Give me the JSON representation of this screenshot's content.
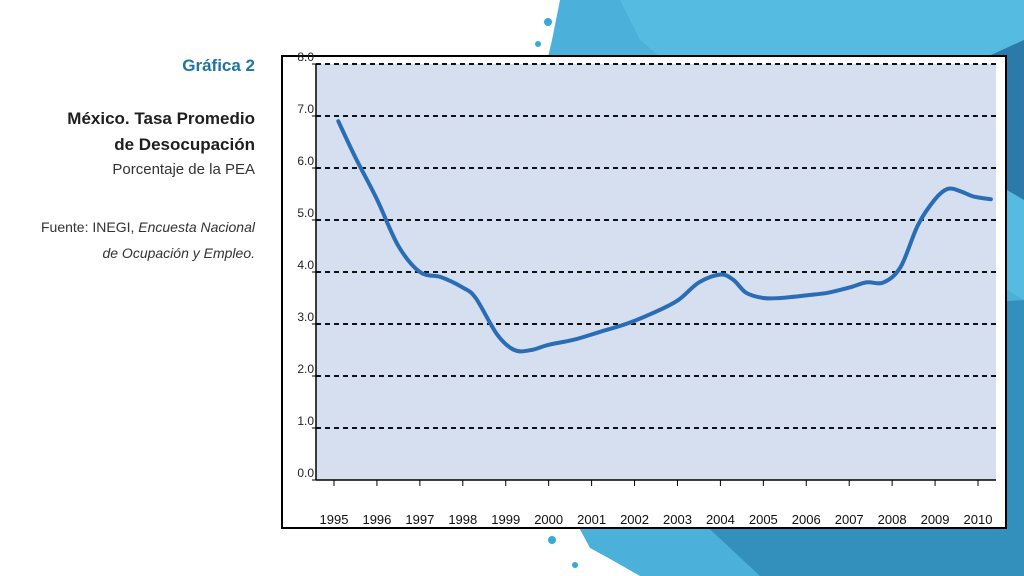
{
  "sidebar": {
    "figure_label": "Gráfica 2",
    "title_line1": "México. Tasa Promedio",
    "title_line2": "de Desocupación",
    "subtitle": "Porcentaje de la PEA",
    "source_prefix": "Fuente: INEGI, ",
    "source_italic": "Encuesta Nacional de Ocupación y Empleo."
  },
  "colors": {
    "plot_background": "#d6dff0",
    "line": "#2a6db5",
    "accent_blue": "#1f74a6",
    "splash_blue": "#38a9d6"
  },
  "chart_data": {
    "type": "line",
    "title": "México. Tasa Promedio de Desocupación",
    "subtitle": "Porcentaje de la PEA",
    "xlabel": "",
    "ylabel": "",
    "ylim": [
      0,
      8
    ],
    "xlim": [
      1995,
      2010
    ],
    "grid": true,
    "legend": "none",
    "y_ticks": [
      "0.0",
      "1.0",
      "2.0",
      "3.0",
      "4.0",
      "5.0",
      "6.0",
      "7.0",
      "8.0"
    ],
    "x_ticks": [
      "1995",
      "1996",
      "1997",
      "1998",
      "1999",
      "2000",
      "2001",
      "2002",
      "2003",
      "2004",
      "2005",
      "2006",
      "2007",
      "2008",
      "2009",
      "2010"
    ],
    "series": [
      {
        "x": [
          1995.1,
          1995.5,
          1996.0,
          1996.5,
          1997.0,
          1997.5,
          1998.0,
          1998.3,
          1998.8,
          1999.2,
          1999.6,
          2000.0,
          2000.6,
          2001.2,
          2001.8,
          2002.4,
          2003.0,
          2003.5,
          2004.0,
          2004.3,
          2004.6,
          2005.0,
          2005.4,
          2006.0,
          2006.5,
          2007.0,
          2007.4,
          2007.8,
          2008.2,
          2008.6,
          2009.0,
          2009.3,
          2009.6,
          2009.9,
          2010.3
        ],
        "y": [
          6.9,
          6.2,
          5.4,
          4.5,
          4.0,
          3.9,
          3.7,
          3.5,
          2.8,
          2.5,
          2.5,
          2.6,
          2.7,
          2.85,
          3.0,
          3.2,
          3.45,
          3.8,
          3.95,
          3.85,
          3.6,
          3.5,
          3.5,
          3.55,
          3.6,
          3.7,
          3.8,
          3.8,
          4.1,
          4.9,
          5.4,
          5.6,
          5.55,
          5.45,
          5.4
        ]
      }
    ]
  }
}
